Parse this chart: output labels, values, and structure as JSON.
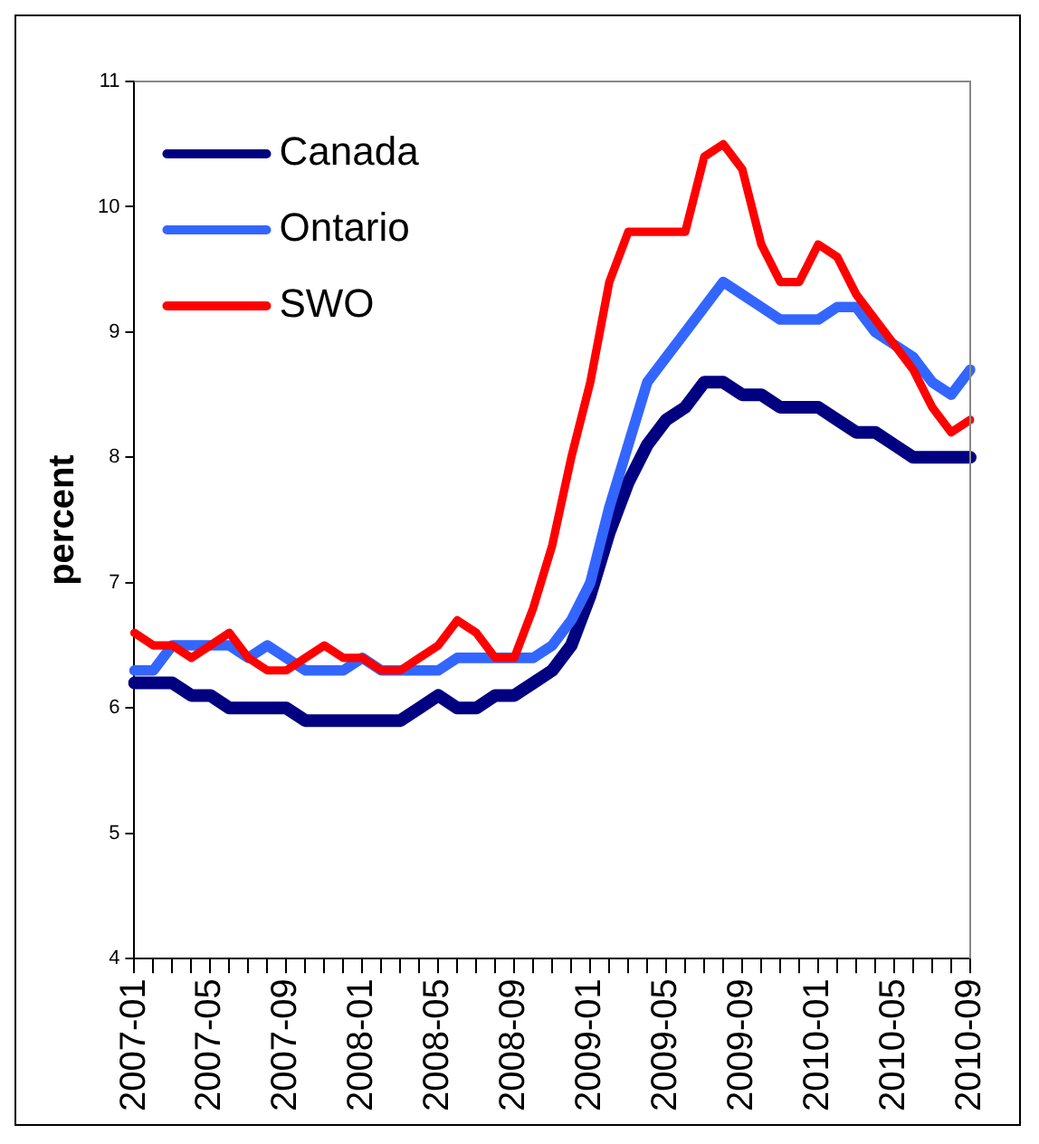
{
  "chart_data": {
    "type": "line",
    "ylabel": "percent",
    "categories": [
      "2007-01",
      null,
      null,
      null,
      "2007-05",
      null,
      null,
      null,
      "2007-09",
      null,
      null,
      null,
      "2008-01",
      null,
      null,
      null,
      "2008-05",
      null,
      null,
      null,
      "2008-09",
      null,
      null,
      null,
      "2009-01",
      null,
      null,
      null,
      "2009-05",
      null,
      null,
      null,
      "2009-09",
      null,
      null,
      null,
      "2010-01",
      null,
      null,
      null,
      "2010-05",
      null,
      null,
      null,
      "2010-09"
    ],
    "series": [
      {
        "name": "Canada",
        "color": "#000080",
        "values": [
          6.2,
          6.2,
          6.2,
          6.1,
          6.1,
          6.0,
          6.0,
          6.0,
          6.0,
          5.9,
          5.9,
          5.9,
          5.9,
          5.9,
          5.9,
          6.0,
          6.1,
          6.0,
          6.0,
          6.1,
          6.1,
          6.2,
          6.3,
          6.5,
          6.9,
          7.4,
          7.8,
          8.1,
          8.3,
          8.4,
          8.6,
          8.6,
          8.5,
          8.5,
          8.4,
          8.4,
          8.4,
          8.3,
          8.2,
          8.2,
          8.1,
          8.0,
          8.0,
          8.0,
          8.0
        ]
      },
      {
        "name": "Ontario",
        "color": "#3366ff",
        "values": [
          6.3,
          6.3,
          6.5,
          6.5,
          6.5,
          6.5,
          6.4,
          6.5,
          6.4,
          6.3,
          6.3,
          6.3,
          6.4,
          6.3,
          6.3,
          6.3,
          6.3,
          6.4,
          6.4,
          6.4,
          6.4,
          6.4,
          6.5,
          6.7,
          7.0,
          7.6,
          8.1,
          8.6,
          8.8,
          9.0,
          9.2,
          9.4,
          9.3,
          9.2,
          9.1,
          9.1,
          9.1,
          9.2,
          9.2,
          9.0,
          8.9,
          8.8,
          8.6,
          8.5,
          8.7
        ]
      },
      {
        "name": "SWO",
        "color": "#ff0000",
        "values": [
          6.6,
          6.5,
          6.5,
          6.4,
          6.5,
          6.6,
          6.4,
          6.3,
          6.3,
          6.4,
          6.5,
          6.4,
          6.4,
          6.3,
          6.3,
          6.4,
          6.5,
          6.7,
          6.6,
          6.4,
          6.4,
          6.8,
          7.3,
          8.0,
          8.6,
          9.4,
          9.8,
          9.8,
          9.8,
          9.8,
          10.4,
          10.5,
          10.3,
          9.7,
          9.4,
          9.4,
          9.7,
          9.6,
          9.3,
          9.1,
          8.9,
          8.7,
          8.4,
          8.2,
          8.3
        ]
      }
    ],
    "ylim": [
      4,
      11
    ],
    "yticks": [
      4,
      5,
      6,
      7,
      8,
      9,
      10,
      11
    ],
    "grid": false,
    "legend": "top left",
    "marker": "none",
    "line_style": "solid"
  }
}
